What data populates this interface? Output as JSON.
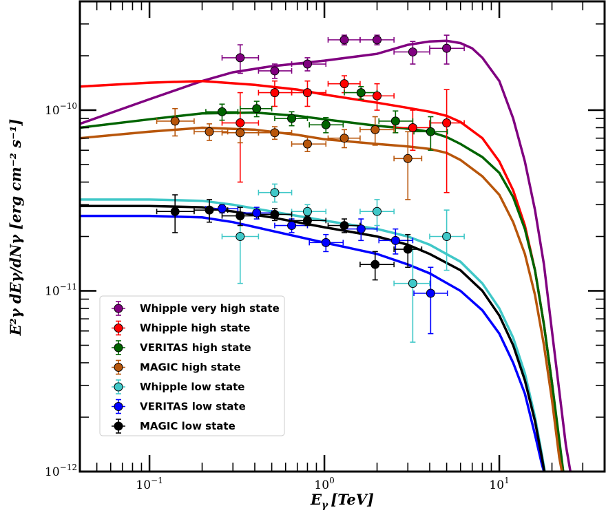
{
  "chart_data": {
    "type": "scatter",
    "xlabel_main": "E",
    "xlabel_sub": "γ",
    "xlabel_unit": "[TeV]",
    "ylabel": "E²γ dEγ/dNγ [erg cm⁻² s⁻¹]",
    "xscale": "log",
    "yscale": "log",
    "xlim": [
      0.04,
      40
    ],
    "ylim": [
      1e-12,
      4e-10
    ],
    "x_tick_labels": [
      {
        "value": 0.1,
        "label": "10",
        "exp": "−1"
      },
      {
        "value": 1,
        "label": "10",
        "exp": "0"
      },
      {
        "value": 10,
        "label": "10",
        "exp": "1"
      }
    ],
    "y_tick_labels": [
      {
        "value": 1e-12,
        "label": "10",
        "exp": "−12"
      },
      {
        "value": 1e-11,
        "label": "10",
        "exp": "−11"
      },
      {
        "value": 1e-10,
        "label": "10",
        "exp": "−10"
      }
    ],
    "legend_position": "lower-left",
    "series": [
      {
        "name": "Whipple very high state",
        "color": "#800080",
        "points": [
          {
            "x": 0.33,
            "y": 1.95e-10,
            "xlo": 0.26,
            "xhi": 0.42,
            "ylo": 1.6e-10,
            "yhi": 2.3e-10
          },
          {
            "x": 0.52,
            "y": 1.65e-10,
            "xlo": 0.42,
            "xhi": 0.65,
            "ylo": 1.5e-10,
            "yhi": 1.8e-10
          },
          {
            "x": 0.8,
            "y": 1.8e-10,
            "xlo": 0.65,
            "xhi": 1.02,
            "ylo": 1.65e-10,
            "yhi": 1.95e-10
          },
          {
            "x": 1.3,
            "y": 2.45e-10,
            "xlo": 1.05,
            "xhi": 1.6,
            "ylo": 2.3e-10,
            "yhi": 2.6e-10
          },
          {
            "x": 2.0,
            "y": 2.45e-10,
            "xlo": 1.6,
            "xhi": 2.5,
            "ylo": 2.3e-10,
            "yhi": 2.6e-10
          },
          {
            "x": 3.2,
            "y": 2.1e-10,
            "xlo": 2.5,
            "xhi": 4.0,
            "ylo": 1.8e-10,
            "yhi": 2.4e-10
          },
          {
            "x": 5.0,
            "y": 2.2e-10,
            "xlo": 4.0,
            "xhi": 6.3,
            "ylo": 1.8e-10,
            "yhi": 2.6e-10
          }
        ],
        "curve": [
          [
            0.04,
            8.4e-11
          ],
          [
            0.1,
            1.15e-10
          ],
          [
            0.2,
            1.45e-10
          ],
          [
            0.3,
            1.62e-10
          ],
          [
            0.5,
            1.75e-10
          ],
          [
            1.0,
            1.88e-10
          ],
          [
            2.0,
            2.05e-10
          ],
          [
            3.0,
            2.3e-10
          ],
          [
            4.0,
            2.4e-10
          ],
          [
            5.0,
            2.42e-10
          ],
          [
            6.0,
            2.35e-10
          ],
          [
            7.0,
            2.2e-10
          ],
          [
            8.0,
            1.95e-10
          ],
          [
            10.0,
            1.45e-10
          ],
          [
            12.0,
            9e-11
          ],
          [
            14.0,
            5.2e-11
          ],
          [
            16.0,
            2.8e-11
          ],
          [
            18.0,
            1.4e-11
          ],
          [
            20.0,
            6e-12
          ],
          [
            22.0,
            2.8e-12
          ],
          [
            24.0,
            1.4e-12
          ],
          [
            25.5,
            1e-12
          ]
        ]
      },
      {
        "name": "Whipple high state",
        "color": "#ff0000",
        "points": [
          {
            "x": 0.33,
            "y": 8.5e-11,
            "xlo": 0.26,
            "xhi": 0.42,
            "ylo": 4e-11,
            "yhi": 1.25e-10
          },
          {
            "x": 0.52,
            "y": 1.25e-10,
            "xlo": 0.42,
            "xhi": 0.65,
            "ylo": 1.05e-10,
            "yhi": 1.45e-10
          },
          {
            "x": 0.8,
            "y": 1.25e-10,
            "xlo": 0.65,
            "xhi": 1.02,
            "ylo": 1.05e-10,
            "yhi": 1.45e-10
          },
          {
            "x": 1.3,
            "y": 1.4e-10,
            "xlo": 1.05,
            "xhi": 1.6,
            "ylo": 1.25e-10,
            "yhi": 1.55e-10
          },
          {
            "x": 2.0,
            "y": 1.2e-10,
            "xlo": 1.6,
            "xhi": 2.5,
            "ylo": 1e-10,
            "yhi": 1.4e-10
          },
          {
            "x": 3.2,
            "y": 8e-11,
            "xlo": 2.5,
            "xhi": 4.0,
            "ylo": 6e-11,
            "yhi": 1e-10
          },
          {
            "x": 5.0,
            "y": 8.5e-11,
            "xlo": 4.0,
            "xhi": 6.3,
            "ylo": 3.5e-11,
            "yhi": 1.3e-10
          }
        ],
        "curve": [
          [
            0.04,
            1.35e-10
          ],
          [
            0.1,
            1.42e-10
          ],
          [
            0.2,
            1.45e-10
          ],
          [
            0.4,
            1.38e-10
          ],
          [
            0.7,
            1.3e-10
          ],
          [
            1.0,
            1.22e-10
          ],
          [
            2.0,
            1.1e-10
          ],
          [
            3.0,
            1.03e-10
          ],
          [
            4.0,
            9.8e-11
          ],
          [
            5.0,
            9.3e-11
          ],
          [
            6.0,
            8.6e-11
          ],
          [
            8.0,
            7e-11
          ],
          [
            10.0,
            5.2e-11
          ],
          [
            12.0,
            3.6e-11
          ],
          [
            14.0,
            2.3e-11
          ],
          [
            16.0,
            1.3e-11
          ],
          [
            18.0,
            6.5e-12
          ],
          [
            20.0,
            3.1e-12
          ],
          [
            22.0,
            1.4e-12
          ],
          [
            23.0,
            1e-12
          ]
        ]
      },
      {
        "name": "VERITAS high state",
        "color": "#006400",
        "points": [
          {
            "x": 0.26,
            "y": 9.8e-11,
            "xlo": 0.21,
            "xhi": 0.32,
            "ylo": 8.8e-11,
            "yhi": 1.08e-10
          },
          {
            "x": 0.41,
            "y": 1.02e-10,
            "xlo": 0.33,
            "xhi": 0.5,
            "ylo": 9.2e-11,
            "yhi": 1.12e-10
          },
          {
            "x": 0.65,
            "y": 9e-11,
            "xlo": 0.52,
            "xhi": 0.8,
            "ylo": 8.2e-11,
            "yhi": 9.8e-11
          },
          {
            "x": 1.02,
            "y": 8.3e-11,
            "xlo": 0.82,
            "xhi": 1.28,
            "ylo": 7.5e-11,
            "yhi": 9.1e-11
          },
          {
            "x": 1.62,
            "y": 1.25e-10,
            "xlo": 1.3,
            "xhi": 2.0,
            "ylo": 1.15e-10,
            "yhi": 1.35e-10
          },
          {
            "x": 2.55,
            "y": 8.7e-11,
            "xlo": 2.05,
            "xhi": 3.2,
            "ylo": 7.5e-11,
            "yhi": 9.9e-11
          },
          {
            "x": 4.05,
            "y": 7.6e-11,
            "xlo": 3.25,
            "xhi": 5.05,
            "ylo": 6e-11,
            "yhi": 9.2e-11
          }
        ],
        "curve": [
          [
            0.04,
            8e-11
          ],
          [
            0.1,
            8.9e-11
          ],
          [
            0.2,
            9.6e-11
          ],
          [
            0.4,
            9.7e-11
          ],
          [
            0.7,
            9.3e-11
          ],
          [
            1.0,
            8.9e-11
          ],
          [
            2.0,
            8.2e-11
          ],
          [
            3.0,
            7.9e-11
          ],
          [
            4.0,
            7.6e-11
          ],
          [
            5.0,
            7.1e-11
          ],
          [
            6.0,
            6.5e-11
          ],
          [
            8.0,
            5.5e-11
          ],
          [
            10.0,
            4.5e-11
          ],
          [
            12.0,
            3.3e-11
          ],
          [
            14.0,
            2.2e-11
          ],
          [
            16.0,
            1.3e-11
          ],
          [
            18.0,
            6.5e-12
          ],
          [
            20.0,
            3.1e-12
          ],
          [
            22.0,
            1.5e-12
          ],
          [
            23.2,
            1e-12
          ]
        ]
      },
      {
        "name": "MAGIC high state",
        "color": "#b8560b",
        "points": [
          {
            "x": 0.14,
            "y": 8.7e-11,
            "xlo": 0.11,
            "xhi": 0.18,
            "ylo": 7.2e-11,
            "yhi": 1.02e-10
          },
          {
            "x": 0.22,
            "y": 7.6e-11,
            "xlo": 0.18,
            "xhi": 0.28,
            "ylo": 6.8e-11,
            "yhi": 8.4e-11
          },
          {
            "x": 0.33,
            "y": 7.5e-11,
            "xlo": 0.26,
            "xhi": 0.42,
            "ylo": 6.6e-11,
            "yhi": 8.4e-11
          },
          {
            "x": 0.52,
            "y": 7.5e-11,
            "xlo": 0.42,
            "xhi": 0.65,
            "ylo": 6.9e-11,
            "yhi": 8.1e-11
          },
          {
            "x": 0.8,
            "y": 6.5e-11,
            "xlo": 0.65,
            "xhi": 1.02,
            "ylo": 5.9e-11,
            "yhi": 7.1e-11
          },
          {
            "x": 1.3,
            "y": 7e-11,
            "xlo": 1.05,
            "xhi": 1.6,
            "ylo": 6.2e-11,
            "yhi": 7.8e-11
          },
          {
            "x": 1.95,
            "y": 7.8e-11,
            "xlo": 1.6,
            "xhi": 2.5,
            "ylo": 6.4e-11,
            "yhi": 9.2e-11
          },
          {
            "x": 3.0,
            "y": 5.4e-11,
            "xlo": 2.5,
            "xhi": 3.6,
            "ylo": 3.2e-11,
            "yhi": 7.6e-11
          }
        ],
        "curve": [
          [
            0.04,
            7e-11
          ],
          [
            0.1,
            7.6e-11
          ],
          [
            0.2,
            8e-11
          ],
          [
            0.4,
            7.8e-11
          ],
          [
            0.7,
            7.3e-11
          ],
          [
            1.0,
            6.9e-11
          ],
          [
            2.0,
            6.5e-11
          ],
          [
            3.0,
            6.3e-11
          ],
          [
            4.0,
            6.1e-11
          ],
          [
            5.0,
            5.8e-11
          ],
          [
            6.0,
            5.3e-11
          ],
          [
            8.0,
            4.3e-11
          ],
          [
            10.0,
            3.4e-11
          ],
          [
            12.0,
            2.4e-11
          ],
          [
            14.0,
            1.6e-11
          ],
          [
            16.0,
            9.5e-12
          ],
          [
            18.0,
            5e-12
          ],
          [
            20.0,
            2.5e-12
          ],
          [
            22.0,
            1.2e-12
          ],
          [
            22.8,
            1e-12
          ]
        ]
      },
      {
        "name": "Whipple low state",
        "color": "#40c8c8",
        "points": [
          {
            "x": 0.33,
            "y": 2e-11,
            "xlo": 0.26,
            "xhi": 0.42,
            "ylo": 1.1e-11,
            "yhi": 2.9e-11
          },
          {
            "x": 0.52,
            "y": 3.5e-11,
            "xlo": 0.42,
            "xhi": 0.65,
            "ylo": 3.1e-11,
            "yhi": 3.9e-11
          },
          {
            "x": 0.8,
            "y": 2.75e-11,
            "xlo": 0.65,
            "xhi": 1.02,
            "ylo": 2.5e-11,
            "yhi": 3e-11
          },
          {
            "x": 2.0,
            "y": 2.75e-11,
            "xlo": 1.6,
            "xhi": 2.5,
            "ylo": 2.3e-11,
            "yhi": 3.2e-11
          },
          {
            "x": 3.2,
            "y": 1.1e-11,
            "xlo": 2.5,
            "xhi": 4.0,
            "ylo": 5.2e-12,
            "yhi": 1.7e-11
          },
          {
            "x": 5.0,
            "y": 2e-11,
            "xlo": 4.0,
            "xhi": 6.3,
            "ylo": 1.3e-11,
            "yhi": 2.8e-11
          }
        ],
        "curve": [
          [
            0.04,
            3.2e-11
          ],
          [
            0.1,
            3.2e-11
          ],
          [
            0.2,
            3.15e-11
          ],
          [
            0.3,
            3e-11
          ],
          [
            0.5,
            2.75e-11
          ],
          [
            1.0,
            2.45e-11
          ],
          [
            2.0,
            2.2e-11
          ],
          [
            3.0,
            2e-11
          ],
          [
            4.0,
            1.8e-11
          ],
          [
            6.0,
            1.45e-11
          ],
          [
            8.0,
            1.1e-11
          ],
          [
            10.0,
            8e-12
          ],
          [
            12.0,
            5.5e-12
          ],
          [
            14.0,
            3.5e-12
          ],
          [
            16.0,
            2e-12
          ],
          [
            17.5,
            1.25e-12
          ],
          [
            18.2,
            1e-12
          ]
        ]
      },
      {
        "name": "VERITAS low state",
        "color": "#0000ff",
        "points": [
          {
            "x": 0.26,
            "y": 2.85e-11,
            "xlo": 0.21,
            "xhi": 0.32,
            "ylo": 2.7e-11,
            "yhi": 3e-11
          },
          {
            "x": 0.41,
            "y": 2.7e-11,
            "xlo": 0.33,
            "xhi": 0.5,
            "ylo": 2.5e-11,
            "yhi": 2.9e-11
          },
          {
            "x": 0.65,
            "y": 2.3e-11,
            "xlo": 0.52,
            "xhi": 0.8,
            "ylo": 2.1e-11,
            "yhi": 2.5e-11
          },
          {
            "x": 1.02,
            "y": 1.85e-11,
            "xlo": 0.82,
            "xhi": 1.28,
            "ylo": 1.65e-11,
            "yhi": 2.05e-11
          },
          {
            "x": 1.62,
            "y": 2.2e-11,
            "xlo": 1.3,
            "xhi": 2.0,
            "ylo": 1.9e-11,
            "yhi": 2.5e-11
          },
          {
            "x": 2.55,
            "y": 1.9e-11,
            "xlo": 2.05,
            "xhi": 3.2,
            "ylo": 1.6e-11,
            "yhi": 2.2e-11
          },
          {
            "x": 4.05,
            "y": 9.7e-12,
            "xlo": 3.25,
            "xhi": 5.05,
            "ylo": 5.8e-12,
            "yhi": 1.35e-11
          }
        ],
        "curve": [
          [
            0.04,
            2.6e-11
          ],
          [
            0.1,
            2.6e-11
          ],
          [
            0.2,
            2.55e-11
          ],
          [
            0.3,
            2.4e-11
          ],
          [
            0.5,
            2.15e-11
          ],
          [
            1.0,
            1.85e-11
          ],
          [
            2.0,
            1.6e-11
          ],
          [
            3.0,
            1.4e-11
          ],
          [
            4.0,
            1.25e-11
          ],
          [
            6.0,
            1e-11
          ],
          [
            8.0,
            7.8e-12
          ],
          [
            10.0,
            5.8e-12
          ],
          [
            12.0,
            4e-12
          ],
          [
            14.0,
            2.7e-12
          ],
          [
            16.0,
            1.6e-12
          ],
          [
            17.5,
            1.1e-12
          ],
          [
            18,
            1e-12
          ]
        ]
      },
      {
        "name": "MAGIC low state",
        "color": "#000000",
        "points": [
          {
            "x": 0.14,
            "y": 2.75e-11,
            "xlo": 0.11,
            "xhi": 0.18,
            "ylo": 2.1e-11,
            "yhi": 3.4e-11
          },
          {
            "x": 0.22,
            "y": 2.8e-11,
            "xlo": 0.18,
            "xhi": 0.28,
            "ylo": 2.4e-11,
            "yhi": 3.2e-11
          },
          {
            "x": 0.33,
            "y": 2.6e-11,
            "xlo": 0.26,
            "xhi": 0.42,
            "ylo": 2.3e-11,
            "yhi": 2.9e-11
          },
          {
            "x": 0.52,
            "y": 2.65e-11,
            "xlo": 0.42,
            "xhi": 0.65,
            "ylo": 2.45e-11,
            "yhi": 2.85e-11
          },
          {
            "x": 0.8,
            "y": 2.45e-11,
            "xlo": 0.65,
            "xhi": 1.02,
            "ylo": 2.3e-11,
            "yhi": 2.6e-11
          },
          {
            "x": 1.3,
            "y": 2.3e-11,
            "xlo": 1.05,
            "xhi": 1.6,
            "ylo": 2.1e-11,
            "yhi": 2.5e-11
          },
          {
            "x": 1.95,
            "y": 1.4e-11,
            "xlo": 1.6,
            "xhi": 2.5,
            "ylo": 1.15e-11,
            "yhi": 1.65e-11
          },
          {
            "x": 3.0,
            "y": 1.7e-11,
            "xlo": 2.5,
            "xhi": 3.6,
            "ylo": 1.35e-11,
            "yhi": 2.05e-11
          }
        ],
        "curve": [
          [
            0.04,
            2.95e-11
          ],
          [
            0.1,
            2.95e-11
          ],
          [
            0.2,
            2.9e-11
          ],
          [
            0.3,
            2.75e-11
          ],
          [
            0.5,
            2.55e-11
          ],
          [
            1.0,
            2.25e-11
          ],
          [
            2.0,
            2e-11
          ],
          [
            3.0,
            1.8e-11
          ],
          [
            4.0,
            1.6e-11
          ],
          [
            6.0,
            1.3e-11
          ],
          [
            8.0,
            1e-11
          ],
          [
            10.0,
            7.3e-12
          ],
          [
            12.0,
            5e-12
          ],
          [
            14.0,
            3.2e-12
          ],
          [
            16.0,
            1.9e-12
          ],
          [
            17.5,
            1.2e-12
          ],
          [
            18.1,
            1e-12
          ]
        ]
      }
    ]
  }
}
